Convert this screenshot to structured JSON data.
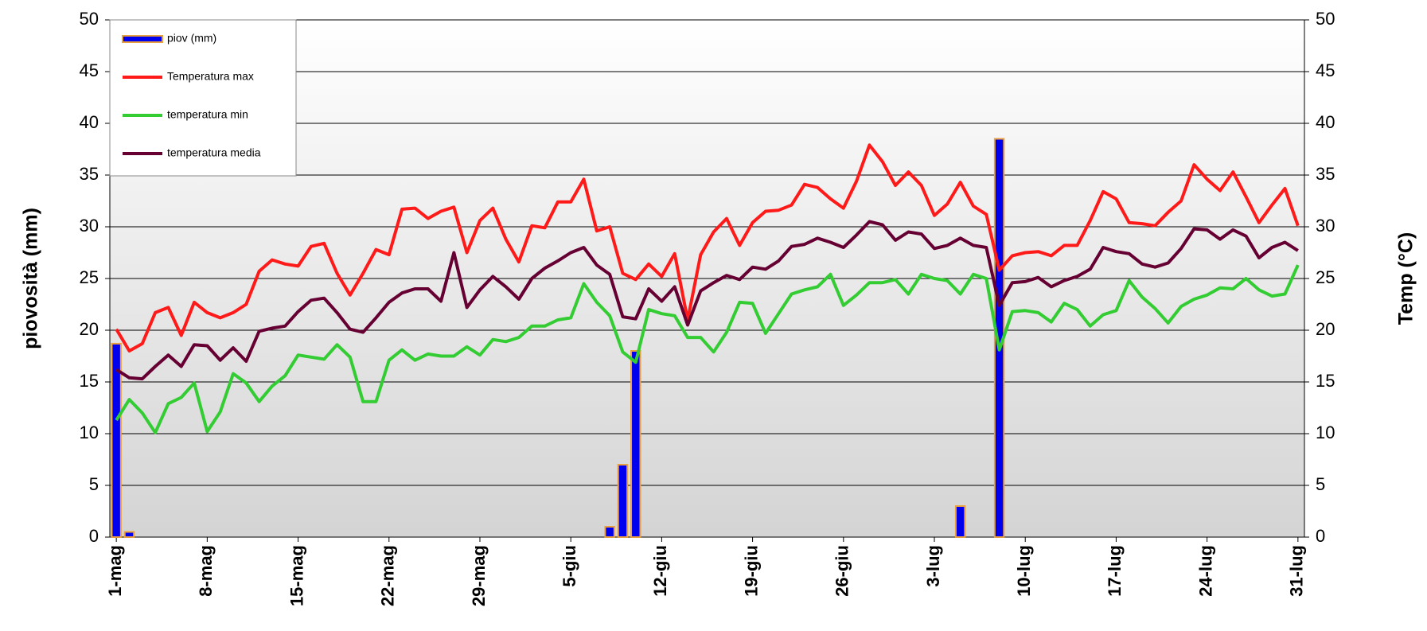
{
  "chart_data": {
    "type": "bar-line",
    "ylabel": "piovosità (mm)",
    "y2label": "Temp (°C)",
    "ylim": [
      0,
      50
    ],
    "yticks": [
      0,
      5,
      10,
      15,
      20,
      25,
      30,
      35,
      40,
      45,
      50
    ],
    "y2lim": [
      0,
      50
    ],
    "y2ticks": [
      0,
      5,
      10,
      15,
      20,
      25,
      30,
      35,
      40,
      45,
      50
    ],
    "grid": true,
    "legend": "upper left",
    "categories": [
      "1-mag",
      null,
      null,
      null,
      null,
      null,
      null,
      "8-mag",
      null,
      null,
      null,
      null,
      null,
      null,
      "15-mag",
      null,
      null,
      null,
      null,
      null,
      null,
      "22-mag",
      null,
      null,
      null,
      null,
      null,
      null,
      "29-mag",
      null,
      null,
      null,
      null,
      null,
      null,
      "5-giu",
      null,
      null,
      null,
      null,
      null,
      null,
      "12-giu",
      null,
      null,
      null,
      null,
      null,
      null,
      "19-giu",
      null,
      null,
      null,
      null,
      null,
      null,
      "26-giu",
      null,
      null,
      null,
      null,
      null,
      null,
      "3-lug",
      null,
      null,
      null,
      null,
      null,
      null,
      "10-lug",
      null,
      null,
      null,
      null,
      null,
      null,
      "17-lug",
      null,
      null,
      null,
      null,
      null,
      null,
      "24-lug",
      null,
      null,
      null,
      null,
      null,
      null,
      "31-lug"
    ],
    "series": [
      {
        "name": "piov (mm)",
        "kind": "bar",
        "color": "#0000ee",
        "edgecolor": "#e8a040",
        "values": [
          18.7,
          0.5,
          0,
          0,
          0,
          0,
          0,
          0,
          0,
          0,
          0,
          0,
          0,
          0,
          0,
          0,
          0,
          0,
          0,
          0,
          0,
          0,
          0,
          0,
          0,
          0,
          0,
          0,
          0,
          0,
          0,
          0,
          0,
          0,
          0,
          0,
          0,
          0,
          1.0,
          7.0,
          18.0,
          0,
          0,
          0,
          0,
          0,
          0,
          0,
          0,
          0,
          0,
          0,
          0,
          0,
          0,
          0,
          0,
          0,
          0,
          0,
          0,
          0,
          0,
          0,
          0,
          3.0,
          0,
          0,
          38.5,
          0,
          0,
          0,
          0,
          0,
          0,
          0,
          0,
          0,
          0,
          0,
          0,
          0,
          0,
          0,
          0,
          0,
          0,
          0,
          0,
          0,
          0,
          0
        ]
      },
      {
        "name": "Temperatura max",
        "kind": "line",
        "axis": "y2",
        "color": "#ff1a1a",
        "values": [
          20.1,
          18.0,
          18.7,
          21.7,
          22.2,
          19.5,
          22.7,
          21.7,
          21.2,
          21.7,
          22.5,
          25.7,
          26.8,
          26.4,
          26.2,
          28.1,
          28.4,
          25.5,
          23.4,
          25.5,
          27.8,
          27.3,
          31.7,
          31.8,
          30.8,
          31.5,
          31.9,
          27.5,
          30.6,
          31.8,
          28.8,
          26.6,
          30.1,
          29.9,
          32.4,
          32.4,
          34.6,
          29.6,
          30.0,
          25.5,
          24.9,
          26.4,
          25.2,
          27.4,
          21.0,
          27.3,
          29.5,
          30.8,
          28.2,
          30.4,
          31.5,
          31.6,
          32.1,
          34.1,
          33.8,
          32.7,
          31.8,
          34.4,
          37.9,
          36.3,
          34.0,
          35.3,
          34.0,
          31.1,
          32.2,
          34.3,
          32.0,
          31.2,
          25.8,
          27.2,
          27.5,
          27.6,
          27.2,
          28.2,
          28.2,
          30.6,
          33.4,
          32.7,
          30.4,
          30.3,
          30.1,
          31.4,
          32.5,
          36.0,
          34.6,
          33.5,
          35.3,
          32.9,
          30.4,
          32.1,
          33.7,
          30.1
        ]
      },
      {
        "name": "temperatura min",
        "kind": "line",
        "axis": "y2",
        "color": "#33cc33",
        "values": [
          11.3,
          13.3,
          12.0,
          10.1,
          12.9,
          13.5,
          14.9,
          10.2,
          12.1,
          15.8,
          14.9,
          13.1,
          14.6,
          15.6,
          17.6,
          17.4,
          17.2,
          18.6,
          17.4,
          13.1,
          13.1,
          17.1,
          18.1,
          17.1,
          17.7,
          17.5,
          17.5,
          18.4,
          17.6,
          19.1,
          18.9,
          19.3,
          20.4,
          20.4,
          21.0,
          21.2,
          24.5,
          22.7,
          21.4,
          17.9,
          16.9,
          22.0,
          21.6,
          21.4,
          19.3,
          19.3,
          17.9,
          19.8,
          22.7,
          22.6,
          19.7,
          21.6,
          23.5,
          23.9,
          24.2,
          25.4,
          22.4,
          23.4,
          24.6,
          24.6,
          24.9,
          23.5,
          25.4,
          25.0,
          24.8,
          23.5,
          25.4,
          25.0,
          18.1,
          21.8,
          21.9,
          21.7,
          20.8,
          22.6,
          22.0,
          20.4,
          21.5,
          21.9,
          24.8,
          23.2,
          22.1,
          20.7,
          22.3,
          23.0,
          23.4,
          24.1,
          24.0,
          25.0,
          23.9,
          23.3,
          23.5,
          26.3
        ]
      },
      {
        "name": "temperatura media",
        "kind": "line",
        "axis": "y2",
        "color": "#660033",
        "values": [
          16.2,
          15.4,
          15.3,
          16.5,
          17.6,
          16.5,
          18.6,
          18.5,
          17.1,
          18.3,
          17.0,
          19.9,
          20.2,
          20.4,
          21.8,
          22.9,
          23.1,
          21.7,
          20.1,
          19.8,
          21.2,
          22.7,
          23.6,
          24.0,
          24.0,
          22.8,
          27.5,
          22.2,
          23.9,
          25.2,
          24.2,
          23.0,
          25.0,
          26.0,
          26.7,
          27.5,
          28.0,
          26.3,
          25.4,
          21.3,
          21.1,
          24.0,
          22.8,
          24.2,
          20.5,
          23.8,
          24.6,
          25.3,
          24.9,
          26.1,
          25.9,
          26.7,
          28.1,
          28.3,
          28.9,
          28.5,
          28.0,
          29.2,
          30.5,
          30.2,
          28.7,
          29.5,
          29.3,
          27.9,
          28.2,
          28.9,
          28.2,
          28.0,
          22.4,
          24.6,
          24.7,
          25.1,
          24.2,
          24.8,
          25.2,
          25.9,
          28.0,
          27.6,
          27.4,
          26.4,
          26.1,
          26.5,
          27.9,
          29.8,
          29.7,
          28.8,
          29.7,
          29.1,
          27.0,
          28.0,
          28.5,
          27.7
        ]
      }
    ]
  }
}
